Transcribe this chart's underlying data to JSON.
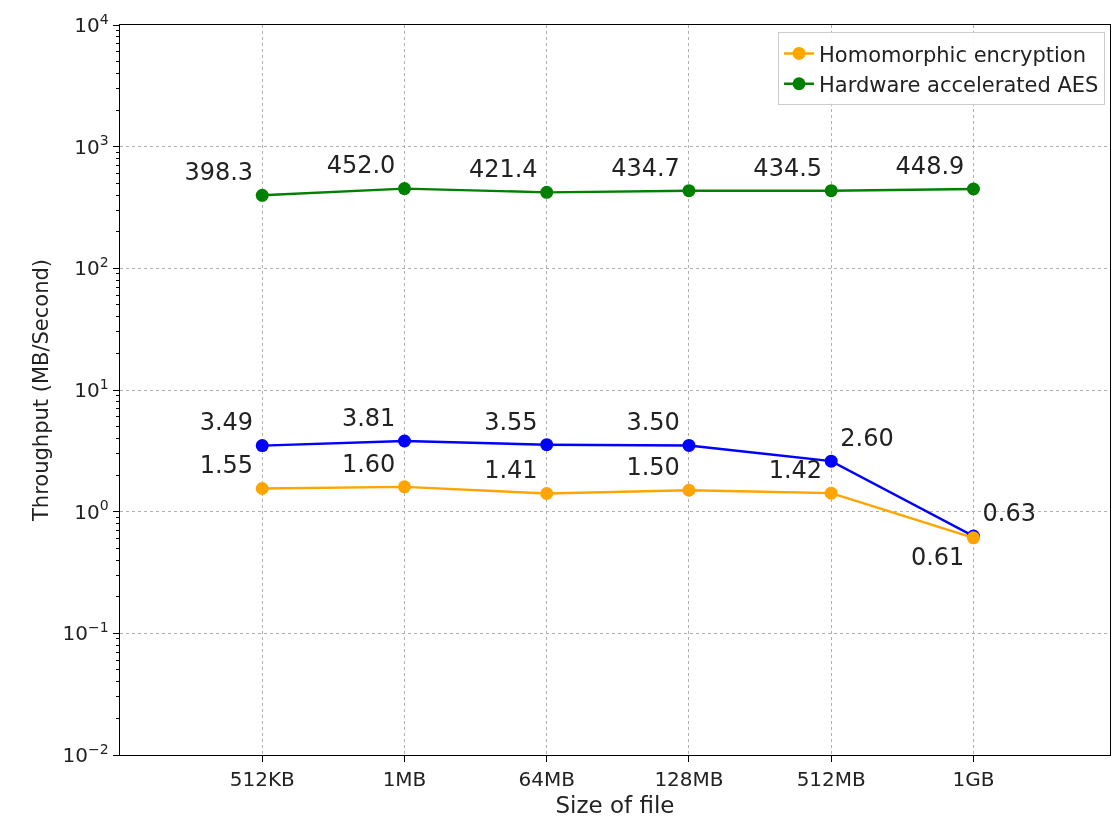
{
  "chart_data": {
    "type": "line",
    "xlabel": "Size of file",
    "ylabel": "Throughput (MB/Second)",
    "categories": [
      "512KB",
      "1MB",
      "64MB",
      "128MB",
      "512MB",
      "1GB"
    ],
    "log": "y",
    "ylim": [
      0.01,
      10000
    ],
    "yticks": [
      {
        "value": 0.01,
        "label": "10$^{−2}$"
      },
      {
        "value": 0.1,
        "label": "10$^{−1}$"
      },
      {
        "value": 1,
        "label": "10$^{0}$"
      },
      {
        "value": 10,
        "label": "10$^{1}$"
      },
      {
        "value": 100,
        "label": "10$^{2}$"
      },
      {
        "value": 1000,
        "label": "10$^{3}$"
      },
      {
        "value": 10000,
        "label": "10$^{4}$"
      },
      {
        "value": 0.02,
        "label": null
      },
      {
        "value": 0.03,
        "label": null
      },
      {
        "value": 0.04,
        "label": null
      },
      {
        "value": 0.05,
        "label": null
      },
      {
        "value": 0.06,
        "label": null
      },
      {
        "value": 0.07,
        "label": null
      },
      {
        "value": 0.08,
        "label": null
      },
      {
        "value": 0.09,
        "label": null
      },
      {
        "value": 0.2,
        "label": null
      },
      {
        "value": 0.3,
        "label": null
      },
      {
        "value": 0.4,
        "label": null
      },
      {
        "value": 0.5,
        "label": null
      },
      {
        "value": 0.6,
        "label": null
      },
      {
        "value": 0.7,
        "label": null
      },
      {
        "value": 0.8,
        "label": null
      },
      {
        "value": 0.9,
        "label": null
      },
      {
        "value": 2,
        "label": null
      },
      {
        "value": 3,
        "label": null
      },
      {
        "value": 4,
        "label": null
      },
      {
        "value": 5,
        "label": null
      },
      {
        "value": 6,
        "label": null
      },
      {
        "value": 7,
        "label": null
      },
      {
        "value": 8,
        "label": null
      },
      {
        "value": 9,
        "label": null
      },
      {
        "value": 20,
        "label": null
      },
      {
        "value": 30,
        "label": null
      },
      {
        "value": 40,
        "label": null
      },
      {
        "value": 50,
        "label": null
      },
      {
        "value": 60,
        "label": null
      },
      {
        "value": 70,
        "label": null
      },
      {
        "value": 80,
        "label": null
      },
      {
        "value": 90,
        "label": null
      },
      {
        "value": 200,
        "label": null
      },
      {
        "value": 300,
        "label": null
      },
      {
        "value": 400,
        "label": null
      },
      {
        "value": 500,
        "label": null
      },
      {
        "value": 600,
        "label": null
      },
      {
        "value": 700,
        "label": null
      },
      {
        "value": 800,
        "label": null
      },
      {
        "value": 900,
        "label": null
      },
      {
        "value": 2000,
        "label": null
      },
      {
        "value": 3000,
        "label": null
      },
      {
        "value": 4000,
        "label": null
      },
      {
        "value": 5000,
        "label": null
      },
      {
        "value": 6000,
        "label": null
      },
      {
        "value": 7000,
        "label": null
      },
      {
        "value": 8000,
        "label": null
      },
      {
        "value": 9000,
        "label": null
      }
    ],
    "grid": true,
    "legend": "top right",
    "marker": "circle",
    "line_style": "solid",
    "series": [
      {
        "color": "#0000ff",
        "values": [
          3.49,
          3.81,
          3.55,
          3.5,
          2.6,
          0.63
        ],
        "value_labels": [
          "3.49",
          "3.81",
          "3.55",
          "3.50",
          "2.60",
          "0.63"
        ]
      },
      {
        "name": "Homomorphic encryption",
        "color": "#ffa500",
        "values": [
          1.55,
          1.6,
          1.41,
          1.5,
          1.42,
          0.61
        ],
        "value_labels": [
          "1.55",
          "1.60",
          "1.41",
          "1.50",
          "1.42",
          "0.61"
        ]
      },
      {
        "name": "Hardware accelerated AES",
        "color": "#008000",
        "values": [
          398.3,
          452.0,
          421.4,
          434.7,
          434.5,
          448.9
        ],
        "value_labels": [
          "398.3",
          "452.0",
          "421.4",
          "434.7",
          "434.5",
          "448.9"
        ]
      }
    ]
  }
}
